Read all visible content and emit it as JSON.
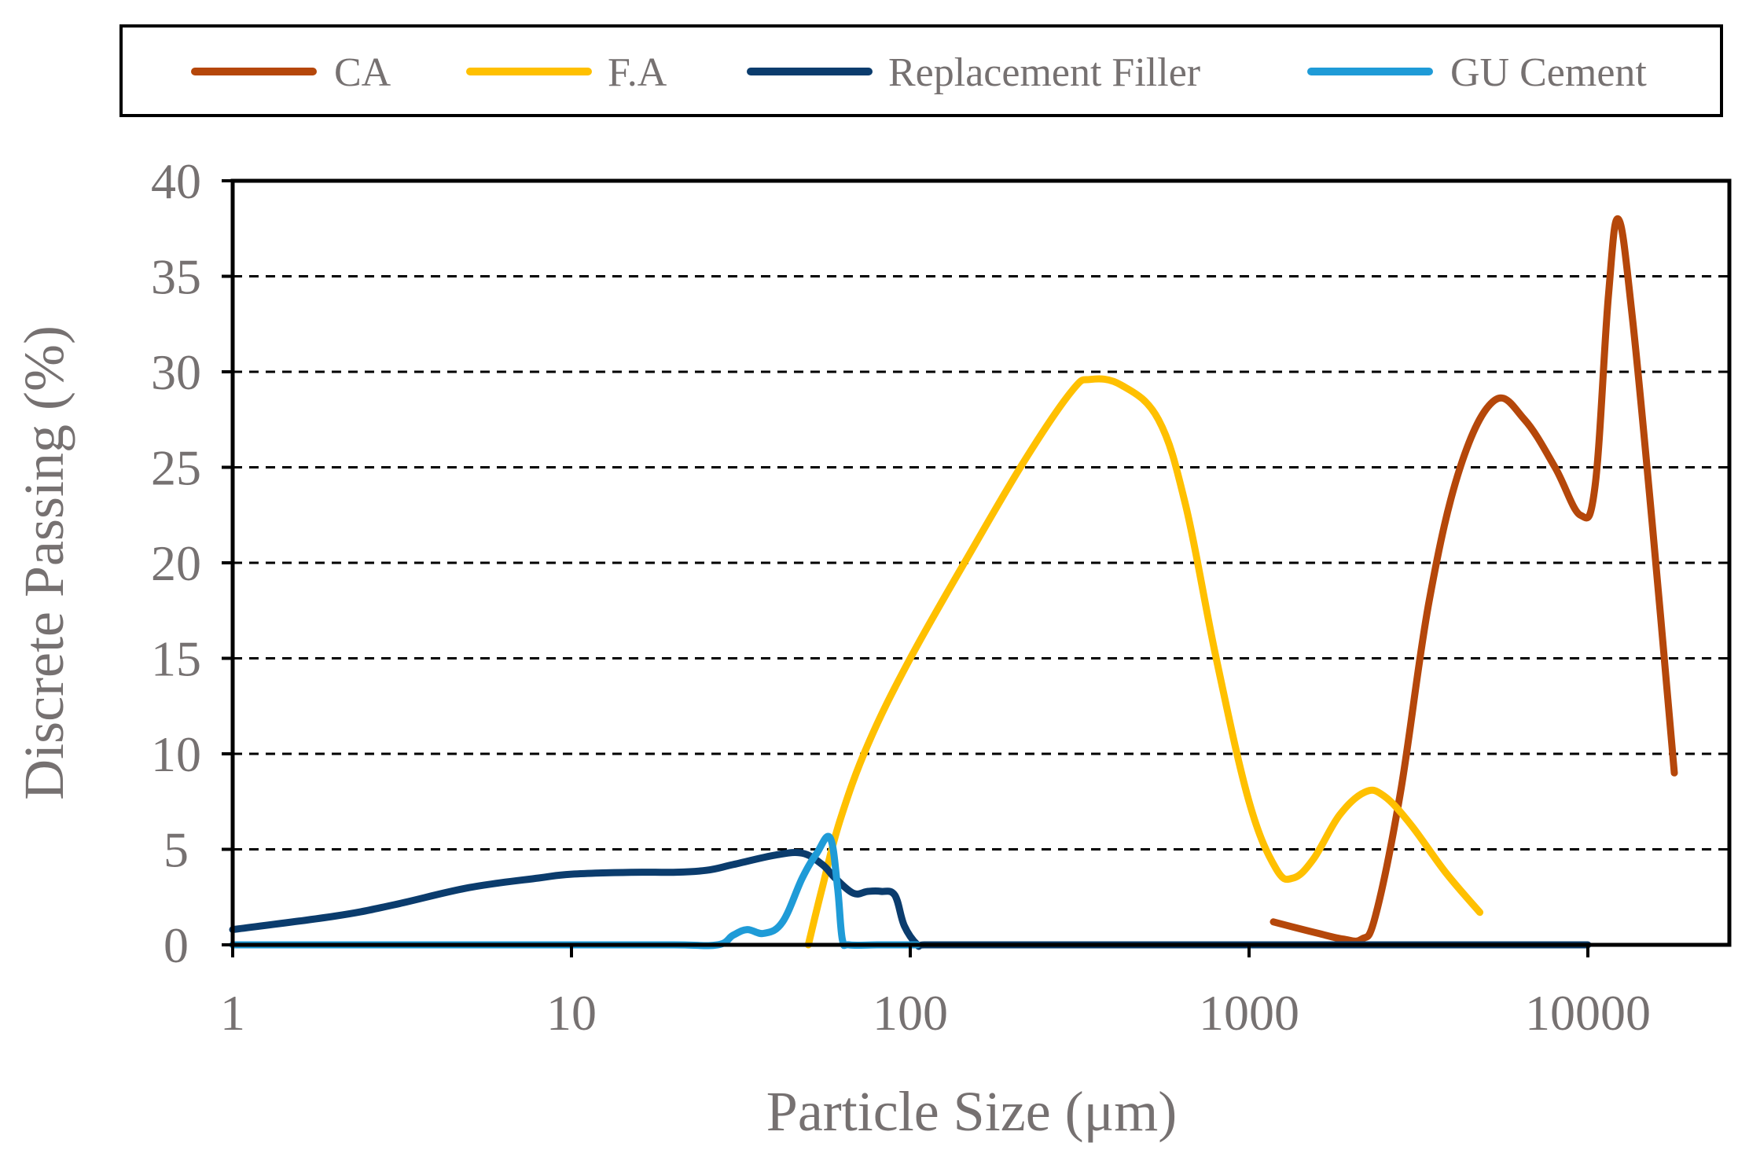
{
  "chart_data": {
    "type": "line",
    "title": "",
    "xlabel": "Particle Size (μm)",
    "ylabel": "Discrete Passing (%)",
    "x_scale": "log",
    "xlim": [
      1,
      30000
    ],
    "ylim": [
      0,
      40
    ],
    "x_ticks": [
      "1",
      "10",
      "100",
      "1000",
      "10000"
    ],
    "y_ticks": [
      "0",
      "5",
      "10",
      "15",
      "20",
      "25",
      "30",
      "35",
      "40"
    ],
    "grid": "horizontal dashed",
    "legend_position": "top",
    "series": [
      {
        "name": "CA",
        "color": "#b5470a",
        "x": [
          1180,
          1600,
          1900,
          2150,
          2360,
          2800,
          3400,
          4200,
          5300,
          6500,
          8000,
          9500,
          10500,
          11500,
          12300,
          13500,
          15500,
          18000
        ],
        "y": [
          1.2,
          0.6,
          0.3,
          0.3,
          1.5,
          8,
          18,
          25,
          28.5,
          27.5,
          25,
          22.5,
          24,
          34,
          38,
          33,
          22,
          9
        ]
      },
      {
        "name": "F.A",
        "color": "#ffc000",
        "x": [
          50,
          55,
          62,
          75,
          100,
          150,
          220,
          300,
          340,
          420,
          540,
          650,
          800,
          1000,
          1200,
          1350,
          1550,
          1850,
          2200,
          2500,
          3000,
          3800,
          4800
        ],
        "y": [
          0,
          3,
          6.5,
          10.5,
          15,
          20.5,
          25.5,
          29,
          29.6,
          29.3,
          27.5,
          23,
          15,
          7.5,
          4,
          3.5,
          4.5,
          6.8,
          8,
          7.8,
          6.3,
          3.8,
          1.7
        ]
      },
      {
        "name": "Replacement Filler",
        "color": "#0b3c6d",
        "x": [
          1,
          2,
          3,
          5,
          8,
          10,
          15,
          20,
          25,
          30,
          40,
          48,
          55,
          60,
          68,
          75,
          82,
          90,
          96,
          105,
          110,
          150,
          1000,
          5000,
          10000
        ],
        "y": [
          0.8,
          1.5,
          2.1,
          3,
          3.5,
          3.7,
          3.8,
          3.8,
          3.9,
          4.2,
          4.7,
          4.8,
          4.2,
          3.5,
          2.7,
          2.8,
          2.8,
          2.6,
          1,
          0,
          0,
          0,
          0,
          0,
          0
        ]
      },
      {
        "name": "GU Cement",
        "color": "#1f9bd7",
        "x": [
          1,
          5,
          10,
          20,
          27,
          30,
          33,
          37,
          42,
          48,
          53,
          58,
          61,
          63,
          66,
          80,
          105
        ],
        "y": [
          0,
          0,
          0,
          0,
          0,
          0.5,
          0.8,
          0.6,
          1.2,
          3.5,
          4.8,
          5.6,
          3,
          0.3,
          0,
          0,
          0
        ]
      }
    ]
  }
}
